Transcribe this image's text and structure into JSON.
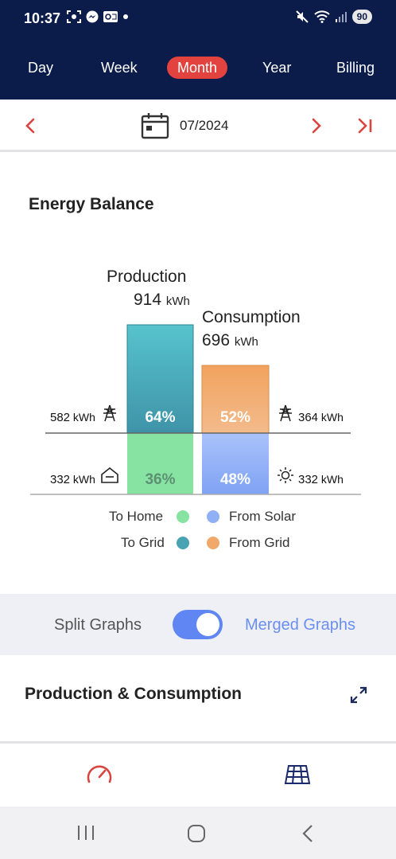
{
  "status": {
    "time": "10:37",
    "battery": "90"
  },
  "tabs": [
    {
      "label": "Day",
      "active": false
    },
    {
      "label": "Week",
      "active": false
    },
    {
      "label": "Month",
      "active": true
    },
    {
      "label": "Year",
      "active": false
    },
    {
      "label": "Billing",
      "active": false
    }
  ],
  "date": {
    "label": "07/2024"
  },
  "energy_balance": {
    "title": "Energy Balance",
    "production": {
      "label": "Production",
      "value": "914",
      "unit": "kWh",
      "to_grid_pct": "64%",
      "to_home_pct": "36%",
      "to_grid_value": "582",
      "to_home_value": "332",
      "unit_small": "kWh"
    },
    "consumption": {
      "label": "Consumption",
      "value": "696",
      "unit": "kWh",
      "from_grid_pct": "52%",
      "from_solar_pct": "48%",
      "from_grid_value": "364",
      "from_solar_value": "332",
      "unit_small": "kWh"
    },
    "legend": {
      "to_home": "To Home",
      "to_grid": "To Grid",
      "from_solar": "From Solar",
      "from_grid": "From Grid"
    },
    "colors": {
      "to_grid": "#4aa3b3",
      "to_home": "#86e3a1",
      "from_grid": "#f0a96a",
      "from_solar": "#8fb0f4"
    }
  },
  "toggle": {
    "split_label": "Split Graphs",
    "merged_label": "Merged Graphs",
    "state": "merged"
  },
  "section": {
    "title": "Production & Consumption"
  },
  "bottom_nav": {
    "items": [
      "gauge-icon",
      "solar-panel-icon"
    ]
  }
}
